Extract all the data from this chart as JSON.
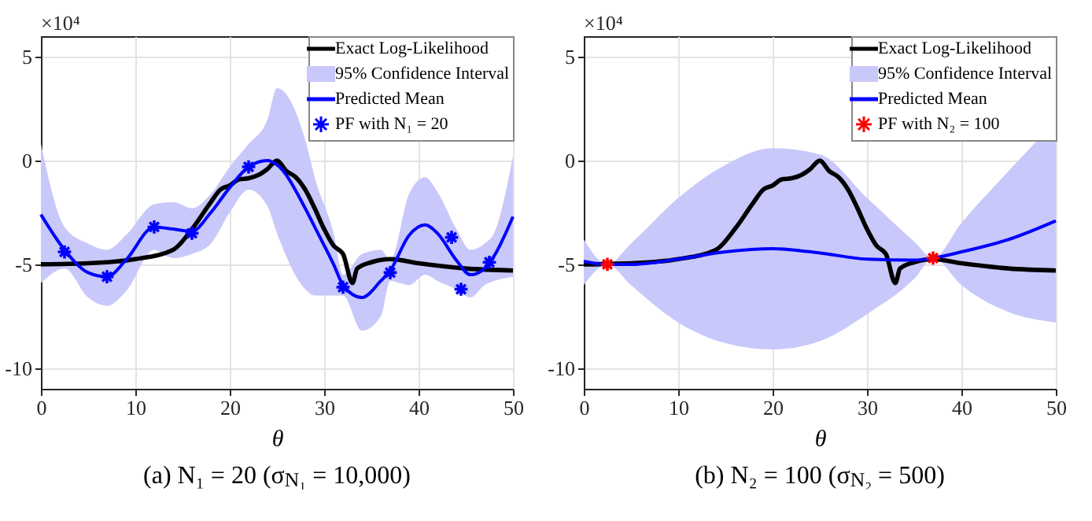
{
  "chart_data": [
    {
      "type": "line",
      "title": "(a) N₁ = 20 (σ$_{N₁}$ = 10,000)",
      "xlabel": "θ",
      "annotations": [
        "×10⁴",
        "95% Confidence Interval"
      ],
      "xlim": [
        0,
        50
      ],
      "ylim": [
        -11,
        6
      ],
      "xticks": [
        0,
        10,
        20,
        30,
        40,
        50
      ],
      "yticks": [
        -10,
        -5,
        0,
        5
      ],
      "grid": true,
      "legend": "top right",
      "series": [
        {
          "name": "Exact Log-Likelihood",
          "color": "#000000",
          "x": [
            0,
            5,
            10,
            14,
            16,
            18,
            19,
            20,
            21,
            22,
            23,
            24,
            25,
            26,
            27,
            28,
            29,
            30,
            31,
            32,
            33,
            33.5,
            35,
            37,
            40,
            45,
            50
          ],
          "values": [
            -5,
            -4.95,
            -4.75,
            -4.3,
            -3.3,
            -2,
            -1.4,
            -1.2,
            -0.9,
            -0.85,
            -0.7,
            -0.4,
            0,
            -0.5,
            -0.8,
            -1.4,
            -2.3,
            -3.3,
            -4.1,
            -4.5,
            -5.9,
            -5.2,
            -4.9,
            -4.75,
            -4.95,
            -5.2,
            -5.3
          ]
        },
        {
          "name": "Predicted Mean",
          "color": "#0000ff",
          "x": [
            0,
            2.5,
            5,
            7,
            9,
            12,
            14,
            16,
            18,
            20,
            22,
            24,
            25,
            28,
            29,
            31,
            32,
            34,
            36,
            37,
            39,
            40.7,
            42,
            44,
            45.5,
            47,
            48,
            50
          ],
          "values": [
            -2.6,
            -4.3,
            -5.4,
            -5.6,
            -4.8,
            -3.2,
            -3.3,
            -3.4,
            -2.5,
            -1.3,
            -0.3,
            0,
            -0.2,
            -2.3,
            -3.2,
            -5,
            -6,
            -6.6,
            -5.8,
            -5.3,
            -3.6,
            -3.1,
            -3.5,
            -4.8,
            -5.5,
            -5.2,
            -4.6,
            -2.7
          ],
          "lower": [
            -5.9,
            -5.2,
            -6.6,
            -7,
            -6.3,
            -4.3,
            -4.7,
            -4.5,
            -4,
            -2.5,
            -1.4,
            -2.2,
            -3.5,
            -6.2,
            -6.5,
            -6.5,
            -6.5,
            -8.2,
            -7.5,
            -5.8,
            -6,
            -5.5,
            -5.8,
            -6.2,
            -6.6,
            -6,
            -5.8,
            -5.6
          ],
          "upper": [
            0.8,
            -3.2,
            -4,
            -4.3,
            -3.6,
            -2.1,
            -2,
            -2.3,
            -1.6,
            -0.3,
            0.8,
            2,
            3.5,
            1,
            -0.8,
            -3.5,
            -5.5,
            -4.5,
            -4.3,
            -4.8,
            -1.6,
            -0.8,
            -1.5,
            -3.3,
            -4.3,
            -4,
            -3.5,
            0.2
          ]
        },
        {
          "type": "scatter",
          "name": "PF with N₁ = 20",
          "color": "#0000ff",
          "x": [
            2.5,
            7,
            12,
            16,
            22,
            32,
            37,
            43.5,
            44.5,
            47.5
          ],
          "values": [
            -4.4,
            -5.6,
            -3.2,
            -3.5,
            -0.3,
            -6.1,
            -5.4,
            -3.7,
            -6.2,
            -4.9
          ]
        }
      ]
    },
    {
      "type": "line",
      "title": "(b) N₂ = 100 (σ$_{N₂}$ = 500)",
      "xlabel": "θ",
      "annotations": [
        "×10⁴",
        "95% Confidence Interval"
      ],
      "xlim": [
        0,
        50
      ],
      "ylim": [
        -11,
        6
      ],
      "xticks": [
        0,
        10,
        20,
        30,
        40,
        50
      ],
      "yticks": [
        -10,
        -5,
        0,
        5
      ],
      "grid": true,
      "legend": "top right",
      "series": [
        {
          "name": "Exact Log-Likelihood",
          "color": "#000000",
          "x": [
            0,
            5,
            10,
            14,
            16,
            18,
            19,
            20,
            21,
            22,
            23,
            24,
            25,
            26,
            27,
            28,
            29,
            30,
            31,
            32,
            33,
            33.5,
            35,
            37,
            40,
            45,
            50
          ],
          "values": [
            -5,
            -4.95,
            -4.75,
            -4.3,
            -3.3,
            -2,
            -1.4,
            -1.2,
            -0.9,
            -0.85,
            -0.7,
            -0.4,
            0,
            -0.5,
            -0.8,
            -1.4,
            -2.3,
            -3.3,
            -4.1,
            -4.5,
            -5.9,
            -5.2,
            -4.9,
            -4.75,
            -4.95,
            -5.2,
            -5.3
          ]
        },
        {
          "name": "Predicted Mean",
          "color": "#0000ff",
          "x": [
            0,
            2.5,
            5,
            10,
            15,
            20,
            25,
            30,
            35,
            37,
            40,
            45,
            50
          ],
          "values": [
            -4.85,
            -5,
            -5,
            -4.75,
            -4.4,
            -4.25,
            -4.45,
            -4.75,
            -4.8,
            -4.7,
            -4.4,
            -3.8,
            -2.9
          ],
          "lower": [
            -6,
            -5,
            -6,
            -7.8,
            -8.8,
            -9.1,
            -8.7,
            -7.4,
            -5.7,
            -4.7,
            -6,
            -7.3,
            -7.8
          ],
          "upper": [
            -3.8,
            -5,
            -4,
            -1.8,
            -0.2,
            0.6,
            0.3,
            -1.8,
            -3.9,
            -4.7,
            -3,
            -0.5,
            1.9
          ]
        },
        {
          "type": "scatter",
          "name": "PF with N₂ = 100",
          "color": "#ff0000",
          "x": [
            2.5,
            37
          ],
          "values": [
            -5,
            -4.7
          ]
        }
      ]
    }
  ]
}
